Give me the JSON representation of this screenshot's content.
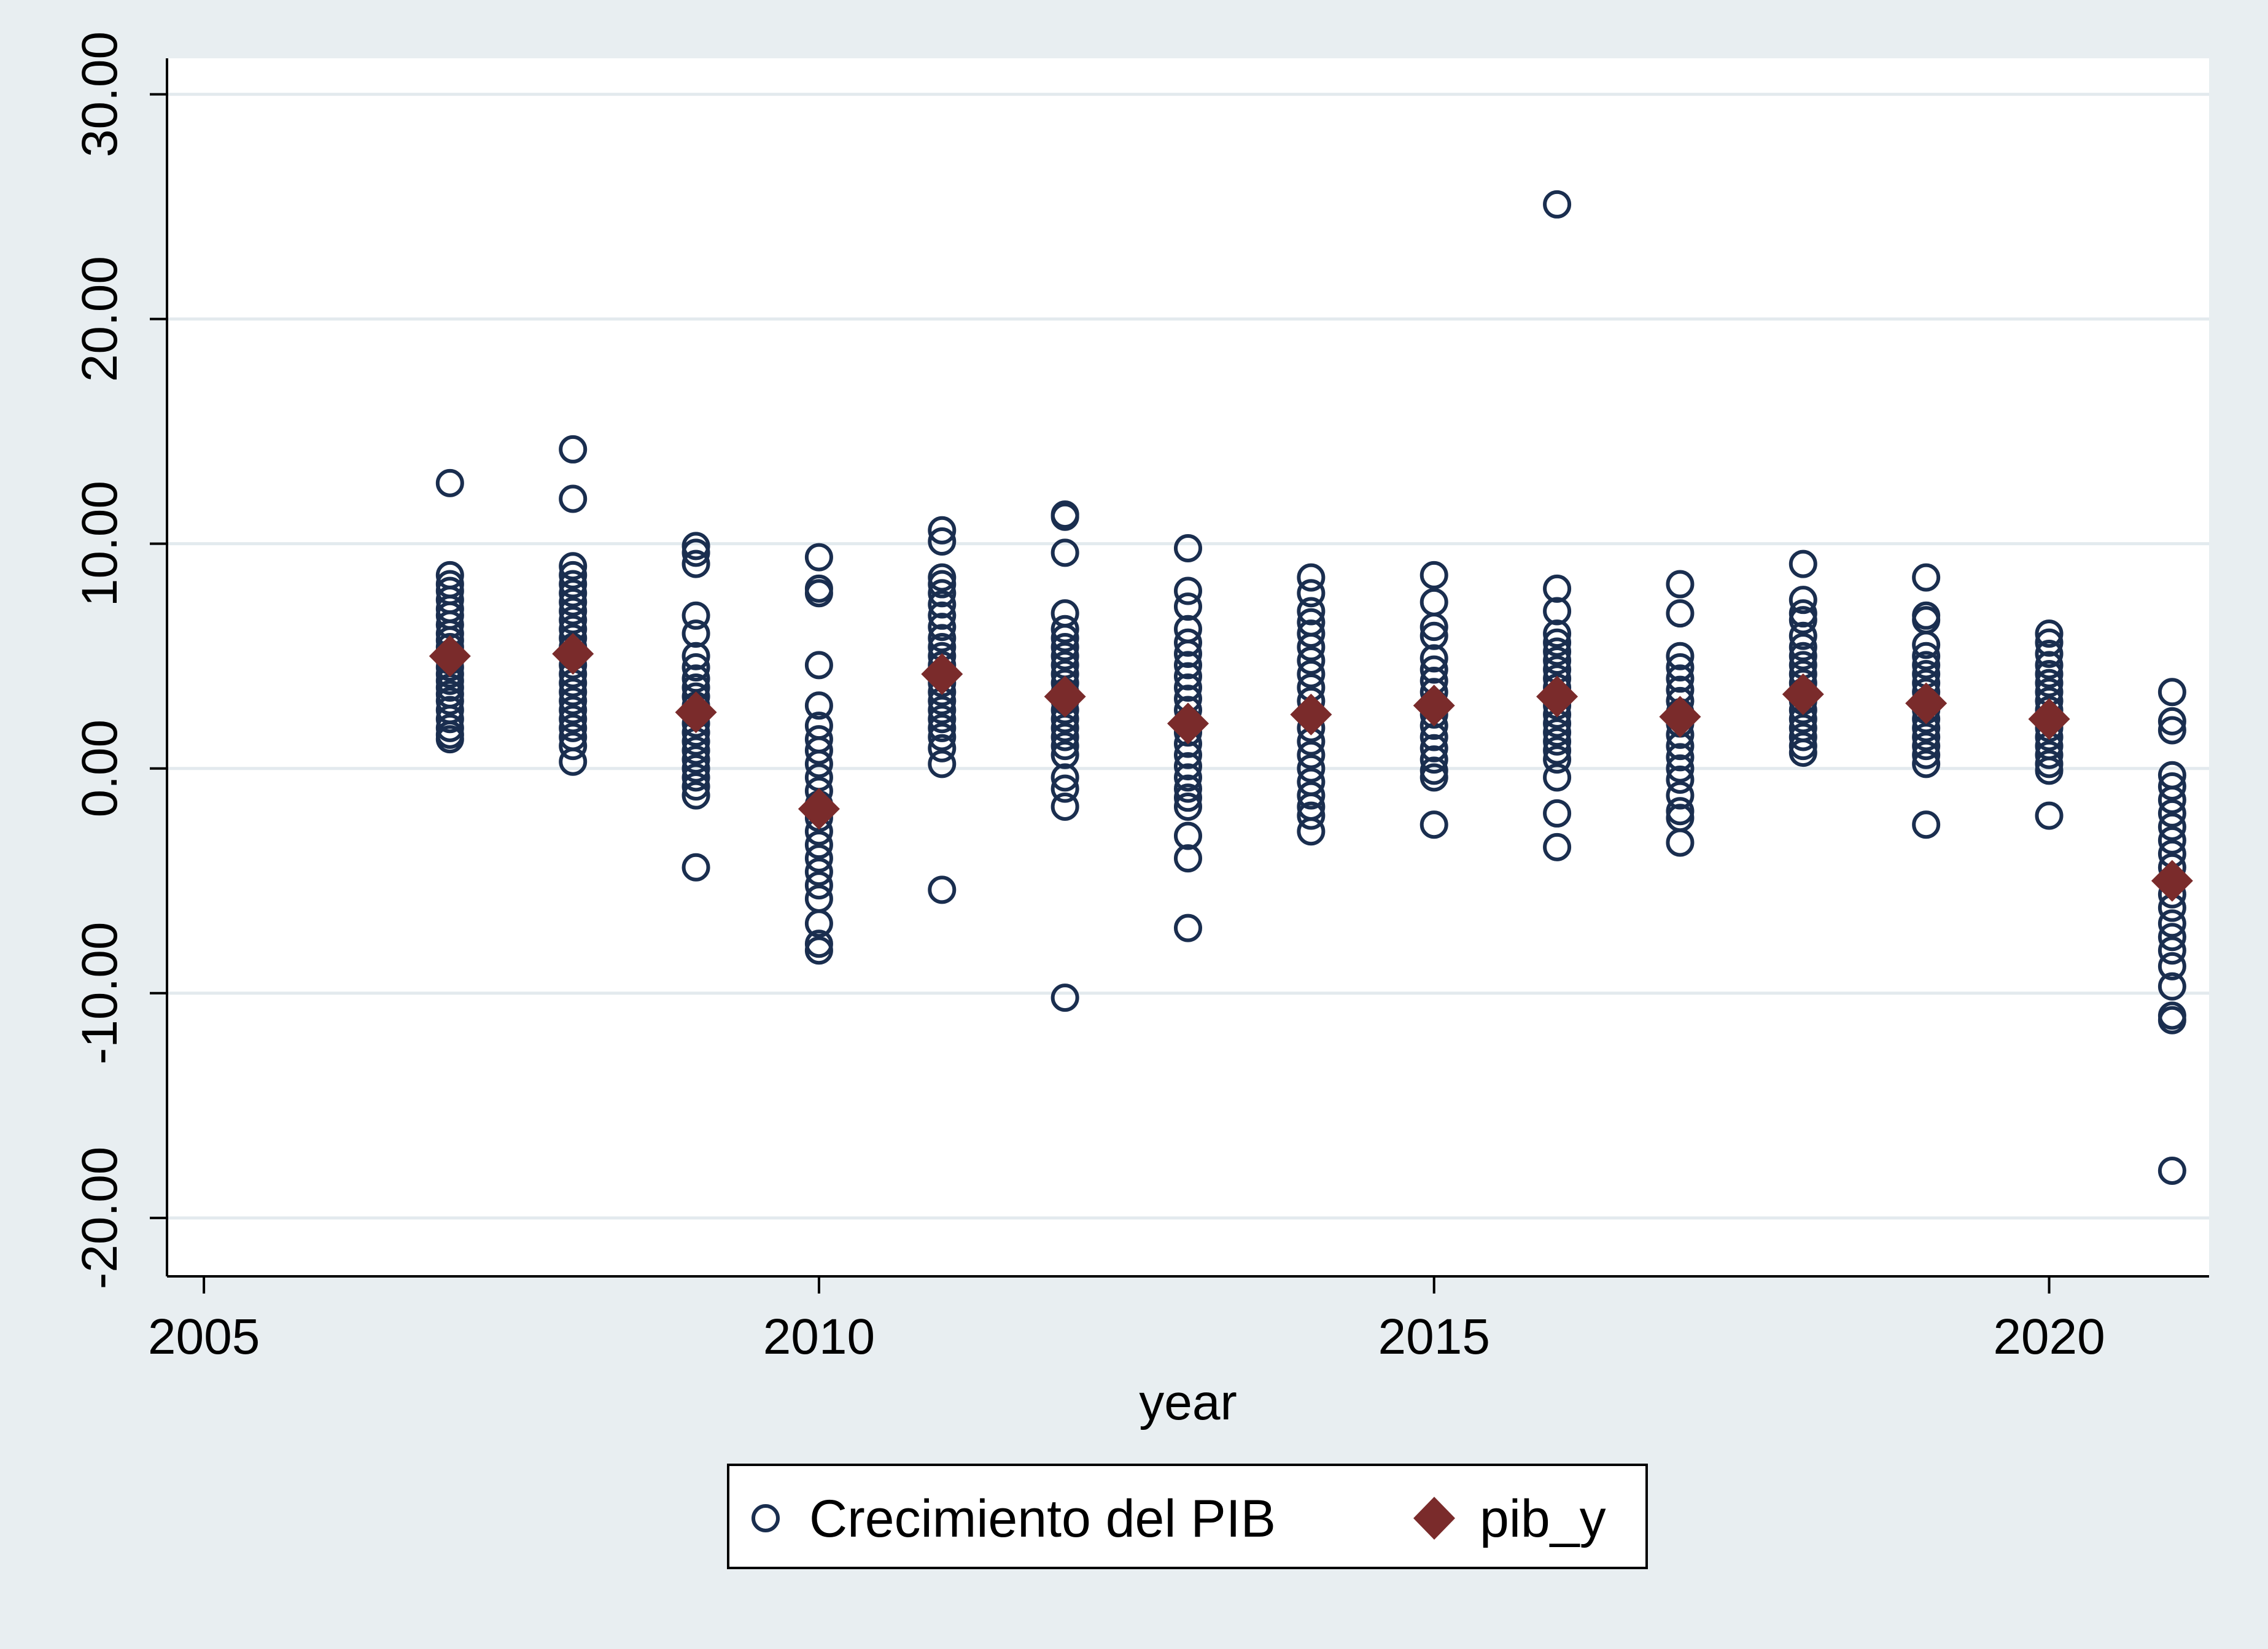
{
  "chart_data": {
    "type": "scatter",
    "title": "",
    "xlabel": "year",
    "ylabel": "",
    "xlim": [
      2004.7,
      2021.3
    ],
    "ylim": [
      -22.6,
      31.6
    ],
    "xticks": [
      2005,
      2010,
      2015,
      2020
    ],
    "xtick_labels": [
      "2005",
      "2010",
      "2015",
      "2020"
    ],
    "yticks": [
      -20,
      -10,
      0,
      10,
      20,
      30
    ],
    "ytick_labels": [
      "-20.00",
      "-10.00",
      "0.00",
      "10.00",
      "20.00",
      "30.00"
    ],
    "grid": true,
    "legend_position": "bottom",
    "colors": {
      "background": "#e8eef1",
      "plot_background": "#ffffff",
      "circle": "#1a2e4f",
      "diamond": "#7a2b2b",
      "gridline": "#e3eaee"
    },
    "series": [
      {
        "name": "Crecimiento del PIB",
        "marker": "hollow-circle",
        "points": [
          {
            "x": 2007,
            "y": [
              12.7,
              8.6,
              8.2,
              7.9,
              7.5,
              7.1,
              6.8,
              6.4,
              6.0,
              5.7,
              5.4,
              5.1,
              4.8,
              4.5,
              4.2,
              3.9,
              3.6,
              3.3,
              3.0,
              2.6,
              2.2,
              1.8,
              1.5,
              1.3
            ]
          },
          {
            "x": 2008,
            "y": [
              14.2,
              12.0,
              9.0,
              8.6,
              8.2,
              7.8,
              7.4,
              7.0,
              6.6,
              6.2,
              5.8,
              5.4,
              5.0,
              4.6,
              4.2,
              3.8,
              3.4,
              3.0,
              2.6,
              2.2,
              1.8,
              1.4,
              1.0,
              0.3
            ]
          },
          {
            "x": 2009,
            "y": [
              9.9,
              9.6,
              9.1,
              6.8,
              6.0,
              5.0,
              4.5,
              4.0,
              3.6,
              3.2,
              2.8,
              2.4,
              2.0,
              1.6,
              1.2,
              0.8,
              0.4,
              0.0,
              -0.4,
              -0.8,
              -1.2,
              -4.4
            ]
          },
          {
            "x": 2010,
            "y": [
              9.4,
              8.0,
              7.8,
              4.6,
              2.8,
              1.9,
              1.3,
              0.8,
              0.2,
              -0.4,
              -1.0,
              -1.6,
              -2.2,
              -2.8,
              -3.4,
              -4.0,
              -4.6,
              -5.2,
              -5.8,
              -6.9,
              -7.8,
              -8.1
            ]
          },
          {
            "x": 2011,
            "y": [
              10.6,
              10.1,
              8.5,
              8.2,
              7.8,
              7.3,
              6.8,
              6.3,
              5.8,
              5.4,
              5.0,
              4.6,
              4.2,
              3.8,
              3.4,
              3.0,
              2.6,
              2.2,
              1.8,
              1.4,
              0.9,
              0.2,
              -5.4
            ]
          },
          {
            "x": 2012,
            "y": [
              11.3,
              11.2,
              9.6,
              6.9,
              6.2,
              5.8,
              5.4,
              5.0,
              4.6,
              4.2,
              3.8,
              3.4,
              3.0,
              2.6,
              2.2,
              1.8,
              1.4,
              1.0,
              0.6,
              -0.4,
              -0.9,
              -1.7,
              -10.2
            ]
          },
          {
            "x": 2013,
            "y": [
              9.8,
              7.9,
              7.2,
              6.2,
              5.6,
              5.1,
              4.6,
              4.1,
              3.6,
              3.1,
              2.6,
              2.1,
              1.6,
              1.1,
              0.6,
              0.1,
              -0.4,
              -0.9,
              -1.3,
              -1.7,
              -3.0,
              -4.0,
              -7.1
            ]
          },
          {
            "x": 2014,
            "y": [
              8.5,
              7.8,
              7.0,
              6.5,
              6.0,
              5.4,
              4.8,
              4.2,
              3.6,
              3.0,
              2.4,
              1.8,
              1.2,
              0.6,
              0.0,
              -0.6,
              -1.2,
              -1.7,
              -2.1,
              -2.8
            ]
          },
          {
            "x": 2015,
            "y": [
              8.6,
              7.4,
              6.3,
              5.9,
              4.9,
              4.4,
              3.9,
              3.4,
              2.9,
              2.4,
              1.9,
              1.4,
              0.9,
              0.4,
              -0.1,
              -0.4,
              -2.5
            ]
          },
          {
            "x": 2016,
            "y": [
              25.1,
              8.0,
              7.0,
              6.0,
              5.6,
              5.2,
              4.8,
              4.4,
              4.0,
              3.6,
              3.2,
              2.8,
              2.4,
              2.0,
              1.6,
              1.2,
              0.8,
              0.4,
              -0.4,
              -2.0,
              -3.5
            ]
          },
          {
            "x": 2017,
            "y": [
              8.2,
              6.9,
              5.0,
              4.5,
              4.0,
              3.5,
              3.0,
              2.5,
              2.0,
              1.5,
              1.0,
              0.5,
              0.0,
              -0.5,
              -1.2,
              -1.9,
              -2.2,
              -3.3
            ]
          },
          {
            "x": 2018,
            "y": [
              9.1,
              7.5,
              6.9,
              6.6,
              5.9,
              5.4,
              5.0,
              4.6,
              4.2,
              3.8,
              3.4,
              3.0,
              2.6,
              2.2,
              1.8,
              1.4,
              1.0,
              0.7
            ]
          },
          {
            "x": 2019,
            "y": [
              8.5,
              6.8,
              6.6,
              5.5,
              5.0,
              4.6,
              4.2,
              3.8,
              3.4,
              3.0,
              2.6,
              2.2,
              1.8,
              1.4,
              1.0,
              0.6,
              0.2,
              -2.5
            ]
          },
          {
            "x": 2020,
            "y": [
              6.0,
              5.6,
              5.1,
              4.6,
              4.2,
              3.8,
              3.4,
              3.0,
              2.6,
              2.2,
              1.8,
              1.4,
              1.0,
              0.6,
              0.2,
              -0.1,
              -2.1
            ]
          },
          {
            "x": 2021,
            "y": [
              3.4,
              2.1,
              1.7,
              -0.3,
              -0.8,
              -1.4,
              -2.0,
              -2.6,
              -3.2,
              -3.8,
              -4.4,
              -5.0,
              -5.6,
              -6.2,
              -6.9,
              -7.5,
              -8.1,
              -8.8,
              -9.7,
              -11.0,
              -11.2,
              -17.9
            ]
          }
        ]
      },
      {
        "name": "pib_y",
        "marker": "filled-diamond",
        "points": [
          {
            "x": 2007,
            "y": 5.0
          },
          {
            "x": 2008,
            "y": 5.1
          },
          {
            "x": 2009,
            "y": 2.5
          },
          {
            "x": 2010,
            "y": -1.8
          },
          {
            "x": 2011,
            "y": 4.2
          },
          {
            "x": 2012,
            "y": 3.2
          },
          {
            "x": 2013,
            "y": 2.0
          },
          {
            "x": 2014,
            "y": 2.4
          },
          {
            "x": 2015,
            "y": 2.8
          },
          {
            "x": 2016,
            "y": 3.2
          },
          {
            "x": 2017,
            "y": 2.3
          },
          {
            "x": 2018,
            "y": 3.3
          },
          {
            "x": 2019,
            "y": 2.9
          },
          {
            "x": 2020,
            "y": 2.2
          },
          {
            "x": 2021,
            "y": -5.0
          }
        ]
      }
    ]
  }
}
